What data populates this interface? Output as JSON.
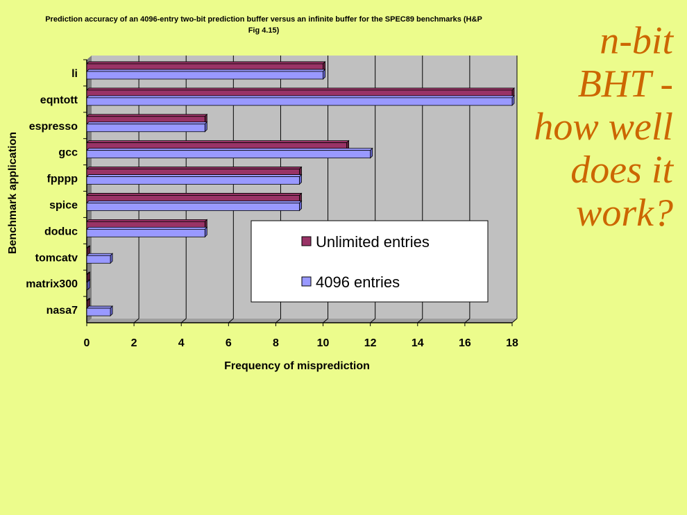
{
  "slide": {
    "side_title_lines": [
      "n-bit",
      "BHT -",
      "how well",
      "does it",
      "work?"
    ]
  },
  "chart_data": {
    "type": "bar",
    "orientation": "horizontal",
    "title": "Prediction accuracy of an 4096-entry two-bit prediction buffer versus an infinite buffer for the SPEC89 benchmarks (H&P Fig 4.15)",
    "xlabel": "Frequency of misprediction",
    "ylabel": "Benchmark application",
    "xlim": [
      0,
      18
    ],
    "xticks": [
      0,
      2,
      4,
      6,
      8,
      10,
      12,
      14,
      16,
      18
    ],
    "grid": true,
    "legend_position": "lower-right-inside",
    "categories": [
      "li",
      "eqntott",
      "espresso",
      "gcc",
      "fpppp",
      "spice",
      "doduc",
      "tomcatv",
      "matrix300",
      "nasa7"
    ],
    "series": [
      {
        "name": "Unlimited entries",
        "color": "#993366",
        "values": [
          10,
          18,
          5,
          11,
          9,
          9,
          5,
          0,
          0,
          0
        ]
      },
      {
        "name": "4096 entries",
        "color": "#9999ff",
        "values": [
          10,
          18,
          5,
          12,
          9,
          9,
          5,
          1,
          0,
          1
        ]
      }
    ]
  }
}
